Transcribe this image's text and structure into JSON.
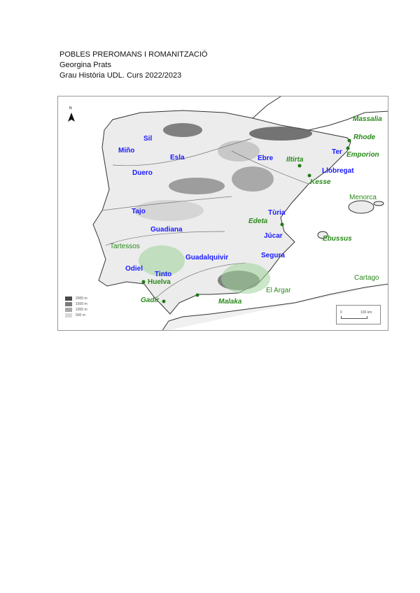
{
  "header": {
    "title": "POBLES PREROMANS I ROMANITZACIÓ",
    "author": "Georgina Prats",
    "course": "Grau Història UDL. Curs 2022/2023"
  },
  "map": {
    "north_label": "N",
    "rivers": [
      "Sil",
      "Miño",
      "Esla",
      "Duero",
      "Ebre",
      "Tajo",
      "Guadiana",
      "Tùria",
      "Júcar",
      "Segura",
      "Guadalquivir",
      "Odiel",
      "Tinto",
      "Ter",
      "Llobregat"
    ],
    "sites": [
      "Massalia",
      "Rhode",
      "Emporion",
      "Iltirta",
      "Kesse",
      "Edeta",
      "Ebussus",
      "Huelva",
      "Gadir",
      "Malaka",
      "Menorca",
      "Cartago"
    ],
    "regions": [
      "Tartessos",
      "El Argar"
    ],
    "legend": [
      "2000 m",
      "1500 m",
      "1000 m",
      "500 m"
    ],
    "legend_colors": [
      "#4a4a4a",
      "#7a7a7a",
      "#a8a8a8",
      "#d8d8d8"
    ],
    "scale": {
      "start": "0",
      "end": "100 km"
    },
    "colors": {
      "river_label": "#1a1aff",
      "site_label": "#2a8a1a",
      "region_fill": "#9fd39a"
    }
  }
}
